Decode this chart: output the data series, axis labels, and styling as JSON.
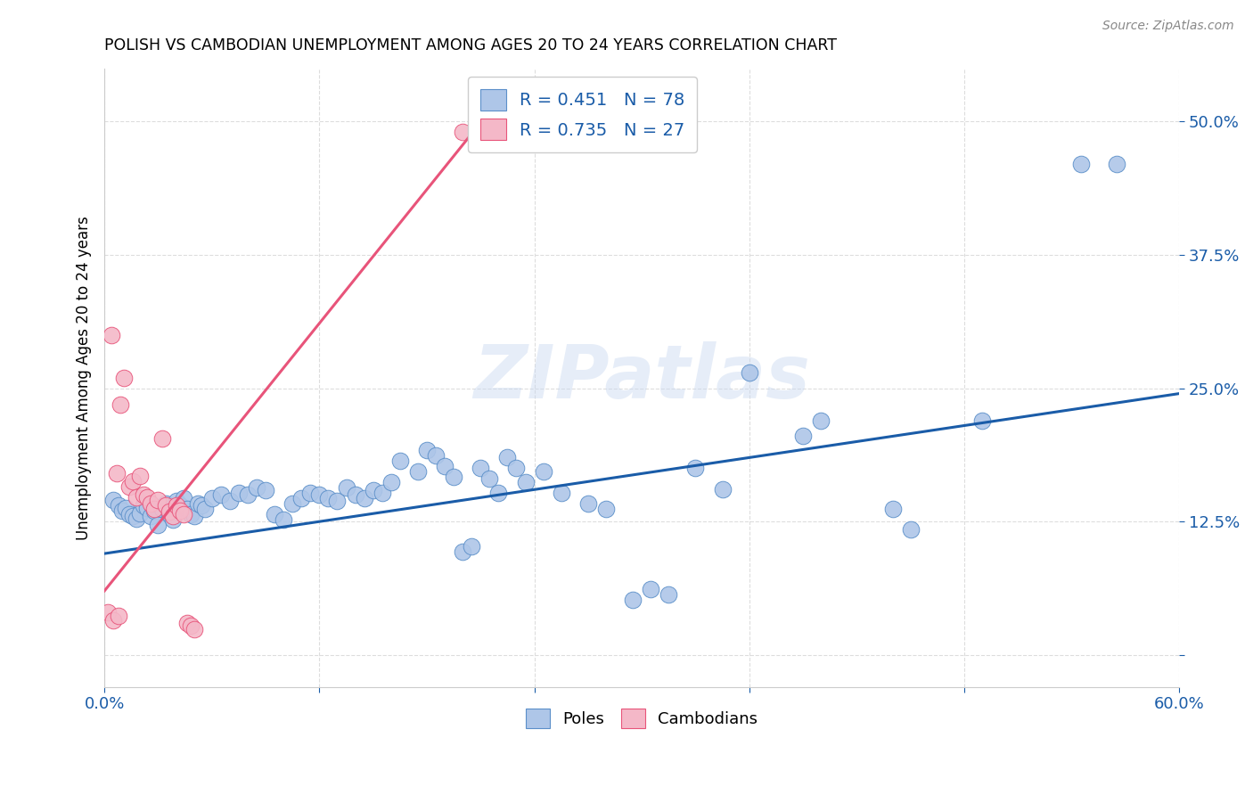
{
  "title": "POLISH VS CAMBODIAN UNEMPLOYMENT AMONG AGES 20 TO 24 YEARS CORRELATION CHART",
  "source": "Source: ZipAtlas.com",
  "ylabel": "Unemployment Among Ages 20 to 24 years",
  "xlim": [
    0.0,
    0.6
  ],
  "ylim": [
    -0.03,
    0.55
  ],
  "poles_color": "#aec6e8",
  "cambodians_color": "#f4b8c8",
  "poles_edge_color": "#5b8fc9",
  "cambodians_edge_color": "#e8547a",
  "poles_line_color": "#1a5ca8",
  "cambodians_line_color": "#e8547a",
  "text_color": "#1a5ca8",
  "poles_R": 0.451,
  "poles_N": 78,
  "cambodians_R": 0.735,
  "cambodians_N": 27,
  "watermark": "ZIPatlas",
  "poles_scatter": [
    [
      0.005,
      0.145
    ],
    [
      0.008,
      0.14
    ],
    [
      0.01,
      0.135
    ],
    [
      0.012,
      0.138
    ],
    [
      0.014,
      0.132
    ],
    [
      0.016,
      0.13
    ],
    [
      0.018,
      0.128
    ],
    [
      0.02,
      0.133
    ],
    [
      0.022,
      0.14
    ],
    [
      0.024,
      0.138
    ],
    [
      0.026,
      0.13
    ],
    [
      0.028,
      0.135
    ],
    [
      0.03,
      0.122
    ],
    [
      0.032,
      0.137
    ],
    [
      0.034,
      0.142
    ],
    [
      0.036,
      0.132
    ],
    [
      0.038,
      0.127
    ],
    [
      0.04,
      0.144
    ],
    [
      0.042,
      0.14
    ],
    [
      0.044,
      0.147
    ],
    [
      0.046,
      0.137
    ],
    [
      0.048,
      0.132
    ],
    [
      0.05,
      0.13
    ],
    [
      0.052,
      0.142
    ],
    [
      0.054,
      0.14
    ],
    [
      0.056,
      0.137
    ],
    [
      0.06,
      0.147
    ],
    [
      0.065,
      0.15
    ],
    [
      0.07,
      0.144
    ],
    [
      0.075,
      0.152
    ],
    [
      0.08,
      0.15
    ],
    [
      0.085,
      0.157
    ],
    [
      0.09,
      0.154
    ],
    [
      0.095,
      0.132
    ],
    [
      0.1,
      0.127
    ],
    [
      0.105,
      0.142
    ],
    [
      0.11,
      0.147
    ],
    [
      0.115,
      0.152
    ],
    [
      0.12,
      0.15
    ],
    [
      0.125,
      0.147
    ],
    [
      0.13,
      0.144
    ],
    [
      0.135,
      0.157
    ],
    [
      0.14,
      0.15
    ],
    [
      0.145,
      0.147
    ],
    [
      0.15,
      0.154
    ],
    [
      0.155,
      0.152
    ],
    [
      0.16,
      0.162
    ],
    [
      0.165,
      0.182
    ],
    [
      0.175,
      0.172
    ],
    [
      0.18,
      0.192
    ],
    [
      0.185,
      0.187
    ],
    [
      0.19,
      0.177
    ],
    [
      0.195,
      0.167
    ],
    [
      0.2,
      0.097
    ],
    [
      0.205,
      0.102
    ],
    [
      0.21,
      0.175
    ],
    [
      0.215,
      0.165
    ],
    [
      0.22,
      0.152
    ],
    [
      0.225,
      0.185
    ],
    [
      0.23,
      0.175
    ],
    [
      0.235,
      0.162
    ],
    [
      0.245,
      0.172
    ],
    [
      0.255,
      0.152
    ],
    [
      0.27,
      0.142
    ],
    [
      0.28,
      0.137
    ],
    [
      0.295,
      0.052
    ],
    [
      0.305,
      0.062
    ],
    [
      0.315,
      0.057
    ],
    [
      0.33,
      0.175
    ],
    [
      0.345,
      0.155
    ],
    [
      0.36,
      0.265
    ],
    [
      0.39,
      0.205
    ],
    [
      0.4,
      0.22
    ],
    [
      0.44,
      0.137
    ],
    [
      0.45,
      0.118
    ],
    [
      0.49,
      0.22
    ],
    [
      0.545,
      0.46
    ],
    [
      0.565,
      0.46
    ]
  ],
  "cambodians_scatter": [
    [
      0.004,
      0.3
    ],
    [
      0.007,
      0.17
    ],
    [
      0.009,
      0.235
    ],
    [
      0.011,
      0.26
    ],
    [
      0.014,
      0.158
    ],
    [
      0.016,
      0.163
    ],
    [
      0.018,
      0.148
    ],
    [
      0.02,
      0.168
    ],
    [
      0.022,
      0.15
    ],
    [
      0.024,
      0.148
    ],
    [
      0.026,
      0.142
    ],
    [
      0.028,
      0.137
    ],
    [
      0.03,
      0.145
    ],
    [
      0.032,
      0.203
    ],
    [
      0.034,
      0.14
    ],
    [
      0.036,
      0.134
    ],
    [
      0.038,
      0.13
    ],
    [
      0.04,
      0.14
    ],
    [
      0.042,
      0.135
    ],
    [
      0.044,
      0.132
    ],
    [
      0.046,
      0.03
    ],
    [
      0.048,
      0.027
    ],
    [
      0.05,
      0.024
    ],
    [
      0.002,
      0.04
    ],
    [
      0.005,
      0.032
    ],
    [
      0.008,
      0.037
    ],
    [
      0.2,
      0.49
    ]
  ]
}
